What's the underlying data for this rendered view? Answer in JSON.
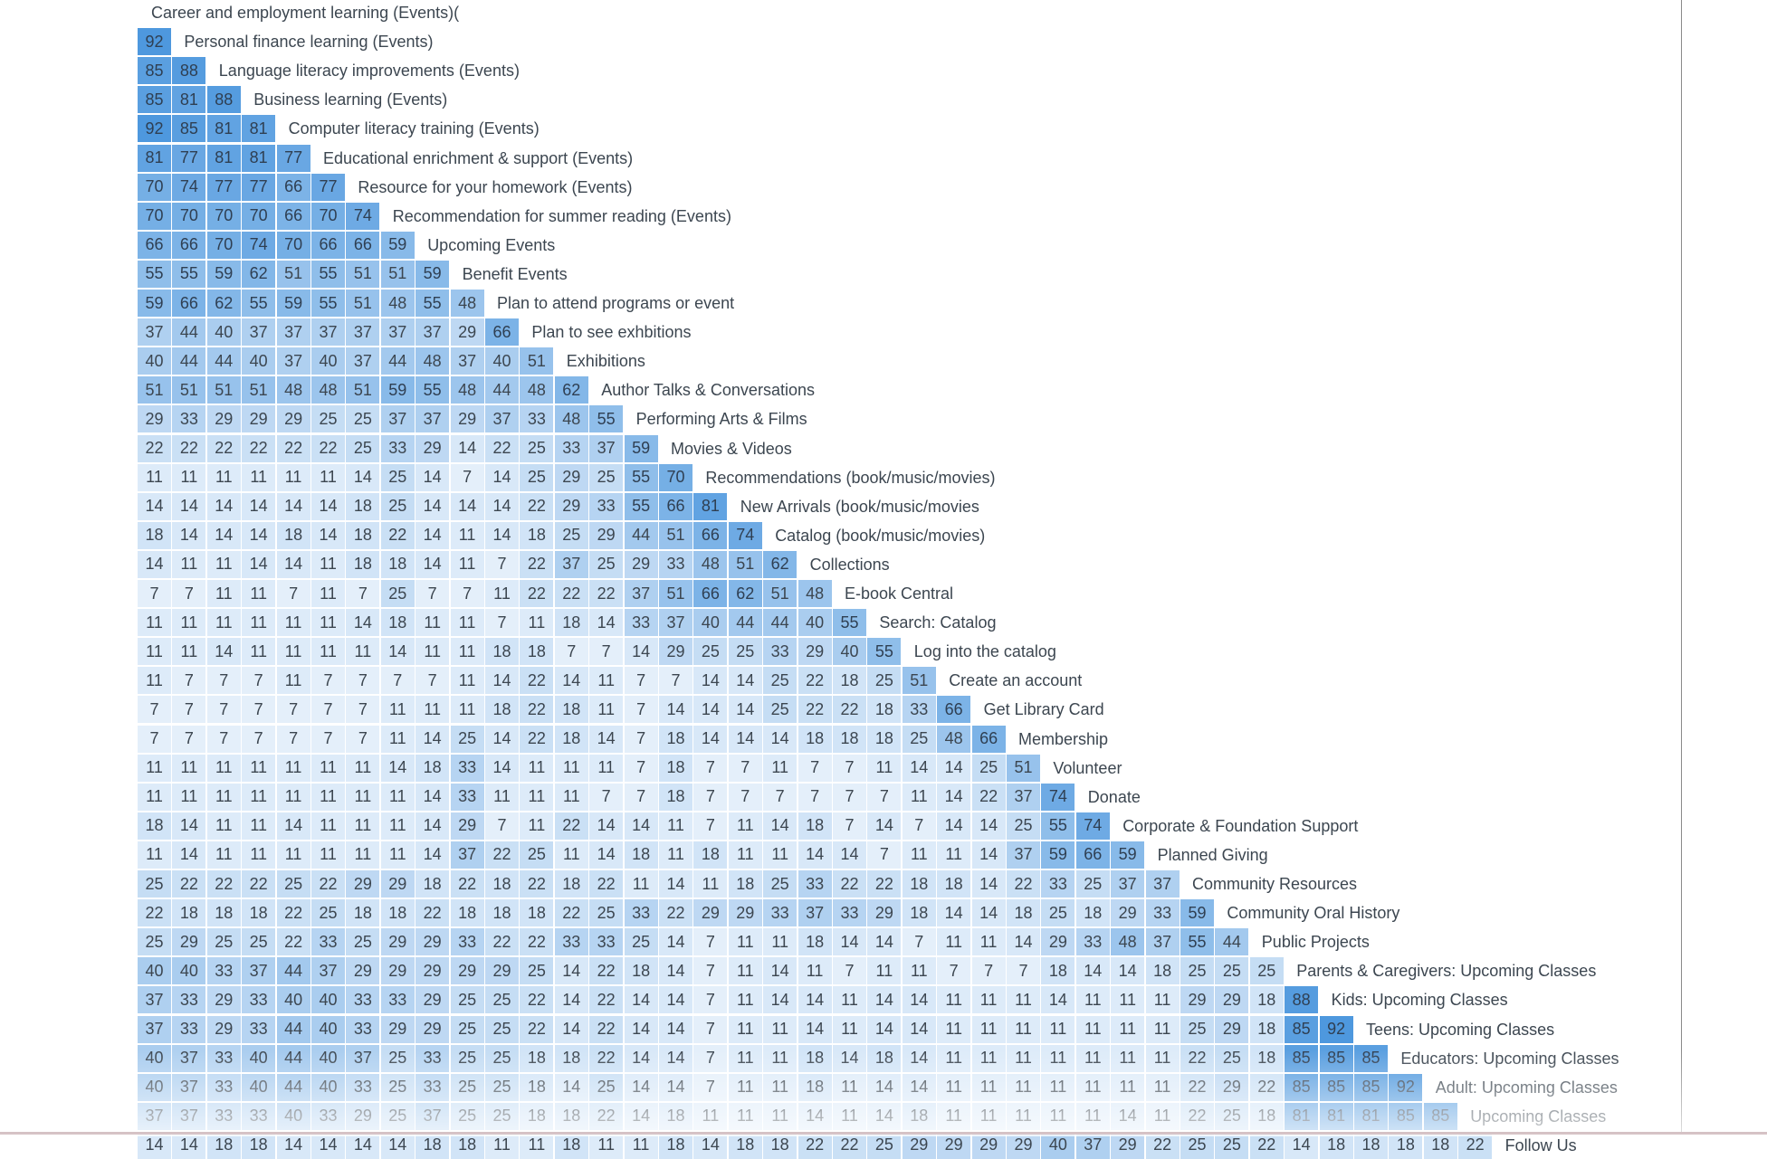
{
  "chart_data": {
    "type": "heatmap",
    "color_low": "#e8f1fb",
    "color_high": "#4e98de",
    "labels": [
      "Career and employment learning (Events)(",
      "Personal finance learning (Events)",
      "Language literacy improvements (Events)",
      "Business learning (Events)",
      "Computer literacy training (Events)",
      "Educational enrichment & support (Events)",
      "Resource for your homework (Events)",
      "Recommendation for summer reading (Events)",
      "Upcoming Events",
      "Benefit Events",
      "Plan to attend programs or event",
      "Plan to see exhbitions",
      "Exhibitions",
      "Author Talks & Conversations",
      "Performing Arts & Films",
      "Movies & Videos",
      "Recommendations (book/music/movies)",
      "New Arrivals (book/music/movies",
      "Catalog (book/music/movies)",
      "Collections",
      "E-book Central",
      "Search: Catalog",
      "Log into the catalog",
      "Create an account",
      "Get Library Card",
      "Membership",
      "Volunteer",
      "Donate",
      "Corporate & Foundation Support",
      "Planned Giving",
      "Community Resources",
      "Community Oral History",
      "Public Projects",
      "Parents & Caregivers: Upcoming Classes",
      "Kids: Upcoming Classes",
      "Teens: Upcoming Classes",
      "Educators: Upcoming Classes",
      "Adult: Upcoming Classes",
      "Upcoming Classes",
      "Follow Us"
    ],
    "rows": [
      [],
      [
        92
      ],
      [
        85,
        88
      ],
      [
        85,
        81,
        88
      ],
      [
        92,
        85,
        81,
        81
      ],
      [
        81,
        77,
        81,
        81,
        77
      ],
      [
        70,
        74,
        77,
        77,
        66,
        77
      ],
      [
        70,
        70,
        70,
        70,
        66,
        70,
        74
      ],
      [
        66,
        66,
        70,
        74,
        70,
        66,
        66,
        59
      ],
      [
        55,
        55,
        59,
        62,
        51,
        55,
        51,
        51,
        59
      ],
      [
        59,
        66,
        62,
        55,
        59,
        55,
        51,
        48,
        55,
        48
      ],
      [
        37,
        44,
        40,
        37,
        37,
        37,
        37,
        37,
        37,
        29,
        66
      ],
      [
        40,
        44,
        44,
        40,
        37,
        40,
        37,
        44,
        48,
        37,
        40,
        51
      ],
      [
        51,
        51,
        51,
        51,
        48,
        48,
        51,
        59,
        55,
        48,
        44,
        48,
        62
      ],
      [
        29,
        33,
        29,
        29,
        29,
        25,
        25,
        37,
        37,
        29,
        37,
        33,
        48,
        55
      ],
      [
        22,
        22,
        22,
        22,
        22,
        22,
        25,
        33,
        29,
        14,
        22,
        25,
        33,
        37,
        59
      ],
      [
        11,
        11,
        11,
        11,
        11,
        11,
        14,
        25,
        14,
        7,
        14,
        25,
        29,
        25,
        55,
        70
      ],
      [
        14,
        14,
        14,
        14,
        14,
        14,
        18,
        25,
        14,
        14,
        14,
        22,
        29,
        33,
        55,
        66,
        81
      ],
      [
        18,
        14,
        14,
        14,
        18,
        14,
        18,
        22,
        14,
        11,
        14,
        18,
        25,
        29,
        44,
        51,
        66,
        74
      ],
      [
        14,
        11,
        11,
        14,
        14,
        11,
        18,
        18,
        14,
        11,
        7,
        22,
        37,
        25,
        29,
        33,
        48,
        51,
        62
      ],
      [
        7,
        7,
        11,
        11,
        7,
        11,
        7,
        25,
        7,
        7,
        11,
        22,
        22,
        22,
        37,
        51,
        66,
        62,
        51,
        48
      ],
      [
        11,
        11,
        11,
        11,
        11,
        11,
        14,
        18,
        11,
        11,
        7,
        11,
        18,
        14,
        33,
        37,
        40,
        44,
        44,
        40,
        55
      ],
      [
        11,
        11,
        14,
        11,
        11,
        11,
        11,
        14,
        11,
        11,
        18,
        18,
        7,
        7,
        14,
        29,
        25,
        25,
        33,
        29,
        40,
        55
      ],
      [
        11,
        7,
        7,
        7,
        11,
        7,
        7,
        7,
        7,
        11,
        14,
        22,
        14,
        11,
        7,
        7,
        14,
        14,
        25,
        22,
        18,
        25,
        51
      ],
      [
        7,
        7,
        7,
        7,
        7,
        7,
        7,
        11,
        11,
        11,
        18,
        22,
        18,
        11,
        7,
        14,
        14,
        14,
        25,
        22,
        22,
        18,
        33,
        66
      ],
      [
        7,
        7,
        7,
        7,
        7,
        7,
        7,
        11,
        14,
        25,
        14,
        22,
        18,
        14,
        7,
        18,
        14,
        14,
        14,
        18,
        18,
        18,
        25,
        48,
        66
      ],
      [
        11,
        11,
        11,
        11,
        11,
        11,
        11,
        14,
        18,
        33,
        14,
        11,
        11,
        11,
        7,
        18,
        7,
        7,
        11,
        7,
        7,
        11,
        14,
        14,
        25,
        51
      ],
      [
        11,
        11,
        11,
        11,
        11,
        11,
        11,
        11,
        14,
        33,
        11,
        11,
        11,
        7,
        7,
        18,
        7,
        7,
        7,
        7,
        7,
        7,
        11,
        14,
        22,
        37,
        74
      ],
      [
        18,
        14,
        11,
        11,
        14,
        11,
        11,
        11,
        14,
        29,
        7,
        11,
        22,
        14,
        14,
        11,
        7,
        11,
        14,
        18,
        7,
        14,
        7,
        14,
        14,
        25,
        55,
        74
      ],
      [
        11,
        14,
        11,
        11,
        11,
        11,
        11,
        11,
        14,
        37,
        22,
        25,
        11,
        14,
        18,
        11,
        18,
        11,
        11,
        14,
        14,
        7,
        11,
        11,
        14,
        37,
        59,
        66,
        59
      ],
      [
        25,
        22,
        22,
        22,
        25,
        22,
        29,
        29,
        18,
        22,
        18,
        22,
        18,
        22,
        11,
        14,
        11,
        18,
        25,
        33,
        22,
        22,
        18,
        18,
        14,
        22,
        33,
        25,
        37,
        37
      ],
      [
        22,
        18,
        18,
        18,
        22,
        25,
        18,
        18,
        22,
        18,
        18,
        18,
        22,
        25,
        33,
        22,
        29,
        29,
        33,
        37,
        33,
        29,
        18,
        14,
        14,
        18,
        25,
        18,
        29,
        33,
        59
      ],
      [
        25,
        29,
        25,
        25,
        22,
        33,
        25,
        29,
        29,
        33,
        22,
        22,
        33,
        33,
        25,
        14,
        7,
        11,
        11,
        18,
        14,
        14,
        7,
        11,
        11,
        14,
        29,
        33,
        48,
        37,
        55,
        44
      ],
      [
        40,
        40,
        33,
        37,
        44,
        37,
        29,
        29,
        29,
        29,
        29,
        25,
        14,
        22,
        18,
        14,
        7,
        11,
        14,
        11,
        7,
        11,
        11,
        7,
        7,
        7,
        18,
        14,
        14,
        18,
        25,
        25,
        25
      ],
      [
        37,
        33,
        29,
        33,
        40,
        40,
        33,
        33,
        29,
        25,
        25,
        22,
        14,
        22,
        14,
        14,
        7,
        11,
        14,
        14,
        11,
        14,
        14,
        11,
        11,
        11,
        14,
        11,
        11,
        11,
        29,
        29,
        18,
        88
      ],
      [
        37,
        33,
        29,
        33,
        44,
        40,
        33,
        29,
        29,
        25,
        25,
        22,
        14,
        22,
        14,
        14,
        7,
        11,
        11,
        14,
        11,
        14,
        14,
        11,
        11,
        11,
        11,
        11,
        11,
        11,
        25,
        29,
        18,
        85,
        92
      ],
      [
        40,
        37,
        33,
        40,
        44,
        40,
        37,
        25,
        33,
        25,
        25,
        18,
        18,
        22,
        14,
        14,
        7,
        11,
        11,
        18,
        14,
        18,
        14,
        11,
        11,
        11,
        11,
        11,
        11,
        11,
        22,
        25,
        18,
        85,
        85,
        85
      ],
      [
        40,
        37,
        33,
        40,
        44,
        40,
        33,
        25,
        33,
        25,
        25,
        18,
        14,
        25,
        14,
        14,
        7,
        11,
        11,
        18,
        11,
        14,
        14,
        11,
        11,
        11,
        11,
        11,
        11,
        11,
        22,
        29,
        22,
        85,
        85,
        85,
        92
      ],
      [
        37,
        37,
        33,
        33,
        40,
        33,
        29,
        25,
        37,
        25,
        25,
        18,
        18,
        22,
        14,
        18,
        11,
        11,
        11,
        14,
        11,
        14,
        18,
        11,
        11,
        11,
        11,
        11,
        14,
        11,
        22,
        25,
        18,
        81,
        81,
        81,
        85,
        85
      ],
      [
        14,
        14,
        18,
        18,
        14,
        14,
        14,
        14,
        18,
        18,
        11,
        11,
        18,
        11,
        11,
        18,
        14,
        18,
        18,
        22,
        22,
        25,
        29,
        29,
        29,
        29,
        40,
        37,
        29,
        22,
        25,
        25,
        22,
        14,
        18,
        18,
        18,
        18,
        22
      ]
    ]
  }
}
